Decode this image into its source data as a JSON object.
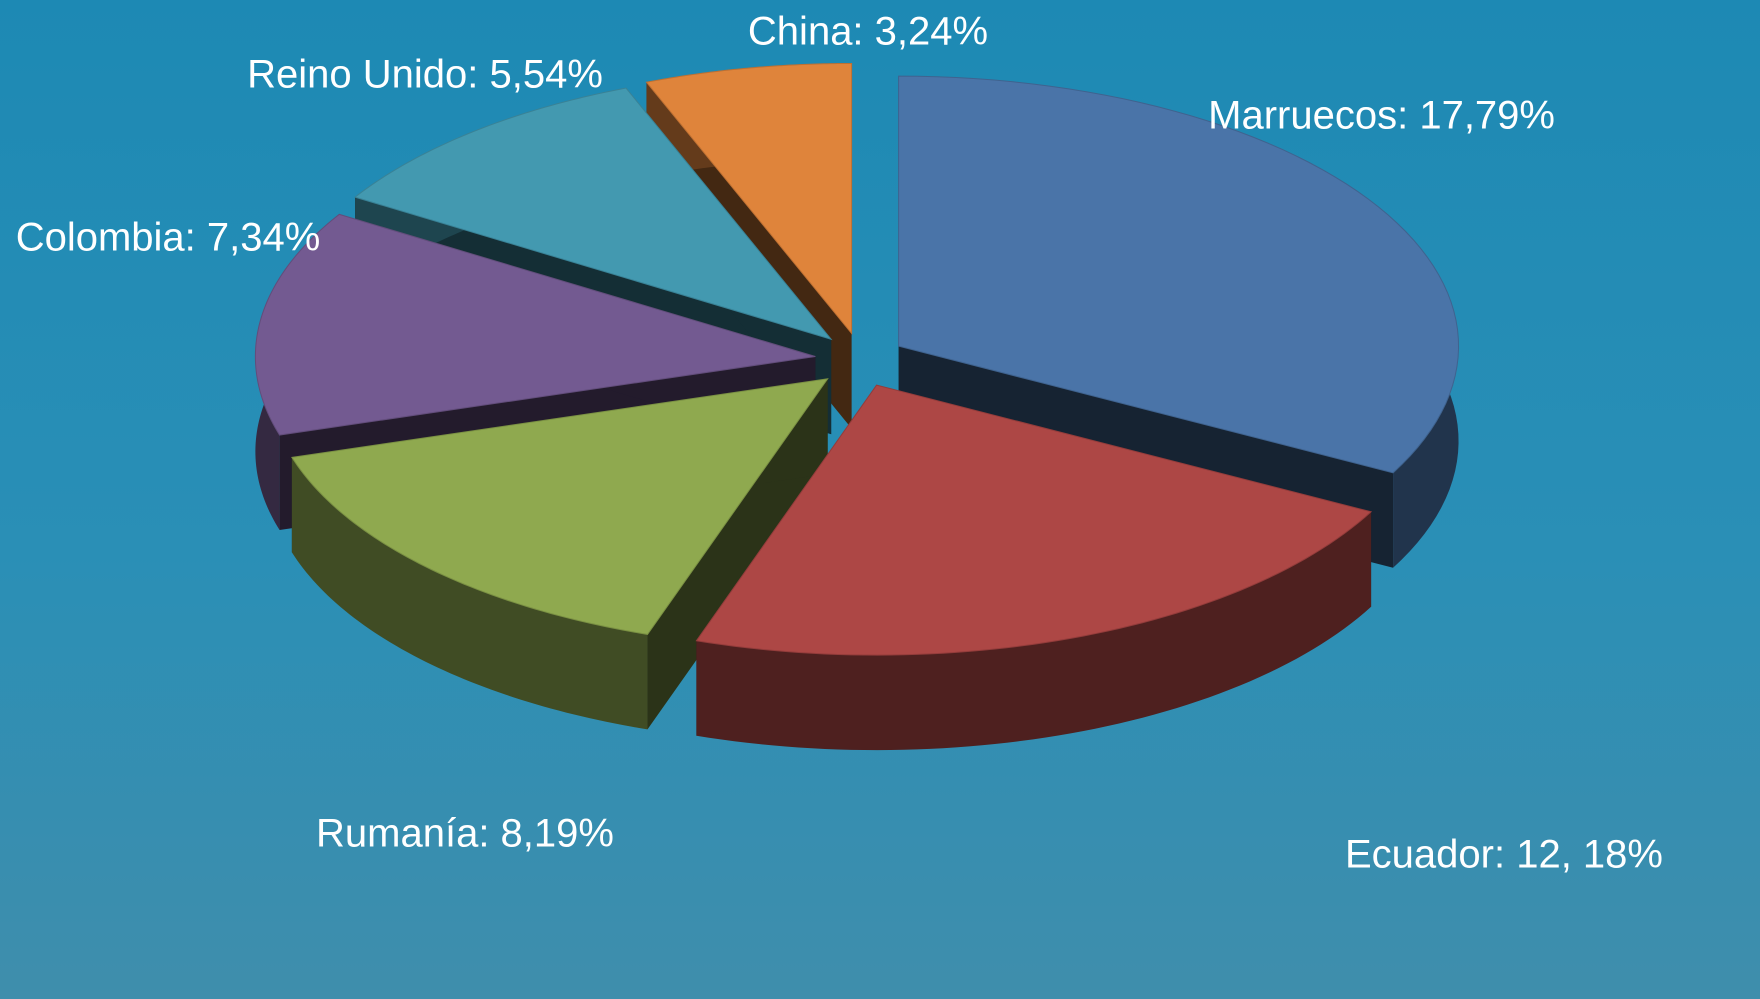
{
  "chart_data": {
    "type": "pie3d",
    "values": [
      17.79,
      12.18,
      8.19,
      7.34,
      5.54,
      3.24
    ],
    "value_labels": [
      "Marruecos: 17,79%",
      "Ecuador: 12, 18%",
      "Rumanía: 8,19%",
      "Colombia: 7,34%",
      "Reino Unido: 5,54%",
      "China: 3,24%"
    ],
    "colors": [
      "#4a74a8",
      "#ad4745",
      "#8fa94f",
      "#735a91",
      "#4399b0",
      "#df843b"
    ]
  }
}
